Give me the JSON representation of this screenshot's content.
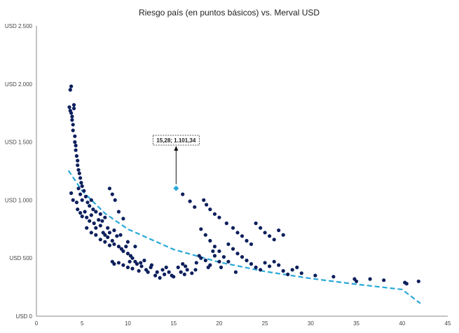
{
  "chart_data": {
    "type": "scatter",
    "title": "Riesgo país (en puntos básicos) vs. Merval USD",
    "xlabel": "",
    "ylabel": "",
    "xlim": [
      0,
      45
    ],
    "ylim": [
      0,
      2500
    ],
    "x_ticks": [
      0,
      5,
      10,
      15,
      20,
      25,
      30,
      35,
      40,
      45
    ],
    "x_tick_labels": [
      "0",
      "5",
      "10",
      "15",
      "20",
      "25",
      "30",
      "35",
      "40",
      "45"
    ],
    "y_ticks": [
      0,
      500,
      1000,
      1500,
      2000,
      2500
    ],
    "y_tick_labels": [
      "USD 0",
      "USD 500",
      "USD 1.000",
      "USD 1.500",
      "USD 2.000",
      "USD 2.500"
    ],
    "grid": false,
    "legend": "none",
    "colors": {
      "points": "#0d1f5c",
      "highlight": "#29a8d8",
      "trend": "#29a8d8",
      "axis": "#888888"
    },
    "series": [
      {
        "values": [
          [
            3.6,
            1800
          ],
          [
            3.7,
            1770
          ],
          [
            3.7,
            1950
          ],
          [
            3.8,
            1980
          ],
          [
            3.8,
            1750
          ],
          [
            3.9,
            1720
          ],
          [
            3.9,
            1690
          ],
          [
            4.0,
            1650
          ],
          [
            4.0,
            1600
          ],
          [
            4.1,
            1790
          ],
          [
            4.1,
            1820
          ],
          [
            4.2,
            1550
          ],
          [
            4.2,
            1500
          ],
          [
            4.3,
            1470
          ],
          [
            4.3,
            1430
          ],
          [
            4.4,
            1380
          ],
          [
            4.5,
            1340
          ],
          [
            4.5,
            1300
          ],
          [
            4.6,
            1260
          ],
          [
            4.7,
            1230
          ],
          [
            4.8,
            1190
          ],
          [
            4.9,
            1150
          ],
          [
            5.0,
            1120
          ],
          [
            3.8,
            1060
          ],
          [
            4.0,
            1000
          ],
          [
            4.4,
            980
          ],
          [
            4.6,
            1100
          ],
          [
            4.8,
            1050
          ],
          [
            5.0,
            1000
          ],
          [
            5.2,
            1080
          ],
          [
            5.4,
            1030
          ],
          [
            5.6,
            980
          ],
          [
            5.8,
            950
          ],
          [
            6.0,
            1000
          ],
          [
            6.2,
            920
          ],
          [
            4.5,
            920
          ],
          [
            4.8,
            890
          ],
          [
            5.0,
            860
          ],
          [
            5.3,
            900
          ],
          [
            5.5,
            850
          ],
          [
            5.8,
            820
          ],
          [
            6.0,
            870
          ],
          [
            6.3,
            800
          ],
          [
            6.5,
            760
          ],
          [
            6.8,
            830
          ],
          [
            7.0,
            780
          ],
          [
            7.3,
            720
          ],
          [
            7.5,
            700
          ],
          [
            7.8,
            680
          ],
          [
            8.0,
            720
          ],
          [
            8.3,
            650
          ],
          [
            8.5,
            620
          ],
          [
            8.8,
            690
          ],
          [
            9.0,
            600
          ],
          [
            9.3,
            580
          ],
          [
            9.5,
            560
          ],
          [
            9.8,
            600
          ],
          [
            10.0,
            540
          ],
          [
            10.3,
            520
          ],
          [
            10.5,
            500
          ],
          [
            6.5,
            900
          ],
          [
            7.0,
            880
          ],
          [
            7.5,
            850
          ],
          [
            8.0,
            1100
          ],
          [
            8.3,
            1050
          ],
          [
            8.6,
            1000
          ],
          [
            9.0,
            900
          ],
          [
            9.5,
            840
          ],
          [
            7.2,
            820
          ],
          [
            7.8,
            760
          ],
          [
            8.5,
            740
          ],
          [
            9.2,
            700
          ],
          [
            10.0,
            640
          ],
          [
            10.8,
            600
          ],
          [
            5.5,
            760
          ],
          [
            6.0,
            720
          ],
          [
            6.5,
            700
          ],
          [
            7.0,
            660
          ],
          [
            7.5,
            640
          ],
          [
            8.0,
            610
          ],
          [
            8.5,
            450
          ],
          [
            9.0,
            460
          ],
          [
            9.5,
            440
          ],
          [
            10.0,
            420
          ],
          [
            10.5,
            410
          ],
          [
            11.0,
            450
          ],
          [
            11.5,
            430
          ],
          [
            12.0,
            400
          ],
          [
            12.5,
            420
          ],
          [
            8.3,
            470
          ],
          [
            10.8,
            470
          ],
          [
            11.2,
            390
          ],
          [
            11.8,
            480
          ],
          [
            12.2,
            380
          ],
          [
            13.0,
            350
          ],
          [
            13.5,
            330
          ],
          [
            14.0,
            360
          ],
          [
            14.5,
            380
          ],
          [
            15.0,
            340
          ],
          [
            15.5,
            420
          ],
          [
            16.0,
            450
          ],
          [
            16.5,
            400
          ],
          [
            17.0,
            370
          ],
          [
            17.5,
            460
          ],
          [
            18.0,
            500
          ],
          [
            18.5,
            480
          ],
          [
            19.0,
            440
          ],
          [
            19.5,
            520
          ],
          [
            20.0,
            470
          ],
          [
            20.5,
            510
          ],
          [
            15.3,
            1101
          ],
          [
            16.0,
            1050
          ],
          [
            16.8,
            990
          ],
          [
            17.3,
            940
          ],
          [
            18.3,
            1000
          ],
          [
            18.6,
            960
          ],
          [
            19.0,
            920
          ],
          [
            19.5,
            880
          ],
          [
            20.0,
            850
          ],
          [
            20.8,
            800
          ],
          [
            21.5,
            760
          ],
          [
            22.0,
            720
          ],
          [
            22.5,
            690
          ],
          [
            23.0,
            650
          ],
          [
            23.5,
            620
          ],
          [
            24.0,
            800
          ],
          [
            24.5,
            760
          ],
          [
            25.0,
            720
          ],
          [
            25.5,
            690
          ],
          [
            26.0,
            660
          ],
          [
            26.5,
            740
          ],
          [
            27.0,
            700
          ],
          [
            18.0,
            750
          ],
          [
            18.5,
            700
          ],
          [
            19.0,
            650
          ],
          [
            19.5,
            600
          ],
          [
            20.0,
            560
          ],
          [
            21.0,
            620
          ],
          [
            21.5,
            580
          ],
          [
            22.0,
            540
          ],
          [
            22.5,
            510
          ],
          [
            23.0,
            480
          ],
          [
            23.5,
            450
          ],
          [
            24.0,
            420
          ],
          [
            24.5,
            400
          ],
          [
            25.0,
            460
          ],
          [
            25.5,
            430
          ],
          [
            26.0,
            470
          ],
          [
            26.5,
            440
          ],
          [
            27.0,
            390
          ],
          [
            27.5,
            360
          ],
          [
            28.0,
            400
          ],
          [
            28.5,
            420
          ],
          [
            29.0,
            370
          ],
          [
            30.5,
            350
          ],
          [
            32.5,
            340
          ],
          [
            34.8,
            320
          ],
          [
            35.0,
            300
          ],
          [
            36.5,
            320
          ],
          [
            38.0,
            310
          ],
          [
            40.3,
            290
          ],
          [
            40.5,
            280
          ],
          [
            41.8,
            300
          ],
          [
            13.8,
            400
          ],
          [
            14.2,
            420
          ],
          [
            15.8,
            380
          ],
          [
            16.3,
            430
          ],
          [
            17.8,
            520
          ],
          [
            19.3,
            560
          ],
          [
            21.0,
            470
          ],
          [
            10.2,
            470
          ],
          [
            11.4,
            460
          ],
          [
            12.6,
            440
          ],
          [
            13.2,
            380
          ],
          [
            14.8,
            350
          ],
          [
            16.2,
            360
          ],
          [
            17.4,
            400
          ],
          [
            18.8,
            420
          ],
          [
            20.2,
            420
          ],
          [
            21.8,
            380
          ]
        ]
      },
      {
        "name": "",
        "values": [
          [
            15.28,
            1101.34
          ]
        ]
      }
    ],
    "trendline": {
      "x": [
        3.5,
        5,
        7.5,
        10,
        15,
        20,
        25,
        30,
        35,
        40,
        42
      ],
      "y": [
        1255,
        1080,
        885,
        750,
        575,
        465,
        385,
        325,
        275,
        230,
        110
      ]
    },
    "annotations": [
      {
        "text": "15,28; 1.101,34",
        "x": 15.28,
        "y": 1101.34
      }
    ]
  }
}
